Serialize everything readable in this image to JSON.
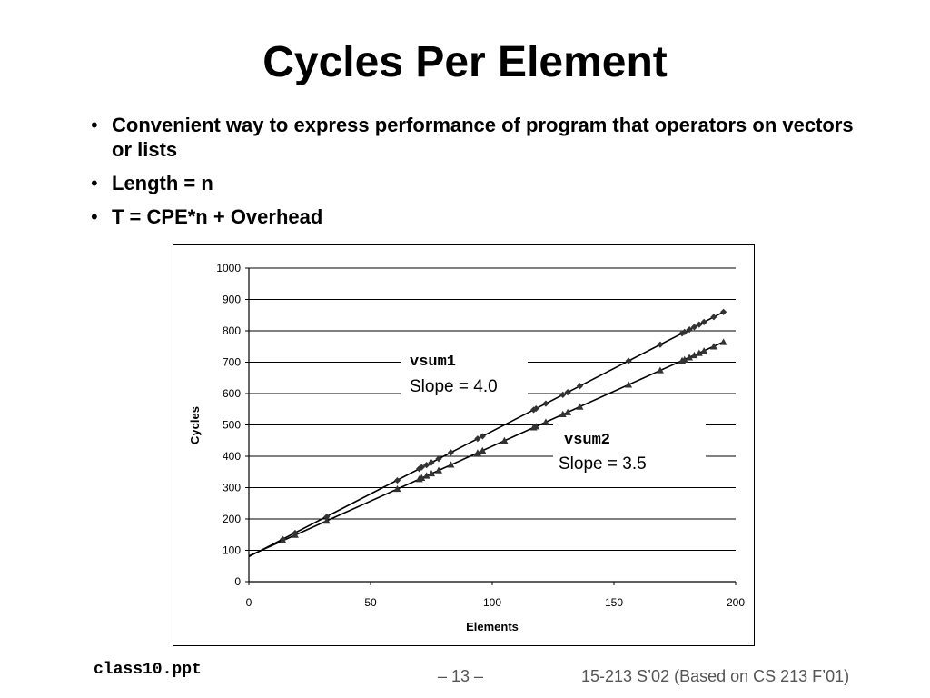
{
  "slide": {
    "title": "Cycles Per Element",
    "bullets": [
      "Convenient way to express performance of program that operators on vectors or lists",
      "Length = n",
      "T = CPE*n + Overhead"
    ],
    "footer_left": "class10.ppt",
    "footer_page": "– 13 –",
    "footer_right": "15-213 S’02 (Based on CS 213 F’01)"
  },
  "chart_data": {
    "type": "scatter",
    "xlabel": "Elements",
    "ylabel": "Cycles",
    "xlim": [
      0,
      200
    ],
    "ylim": [
      0,
      1000
    ],
    "xticks": [
      "0",
      "50",
      "100",
      "150",
      "200"
    ],
    "yticks": [
      "0",
      "100",
      "200",
      "300",
      "400",
      "500",
      "600",
      "700",
      "800",
      "900",
      "1000"
    ],
    "grid": "horizontal",
    "series": [
      {
        "name": "vsum1",
        "marker": "diamond",
        "fit_slope": 4.0,
        "fit_intercept": 80,
        "x": [
          14,
          19,
          32,
          61,
          70,
          71,
          73,
          75,
          78,
          83,
          94,
          96,
          117,
          118,
          122,
          129,
          131,
          136,
          156,
          169,
          178,
          179,
          181,
          183,
          185,
          187,
          191,
          195
        ],
        "y": [
          135,
          155,
          207,
          323,
          360,
          365,
          372,
          380,
          392,
          412,
          456,
          464,
          548,
          552,
          568,
          596,
          604,
          624,
          704,
          756,
          792,
          796,
          804,
          812,
          820,
          828,
          844,
          860
        ]
      },
      {
        "name": "vsum2",
        "marker": "triangle",
        "fit_slope": 3.5,
        "fit_intercept": 82,
        "x": [
          14,
          19,
          32,
          61,
          70,
          71,
          73,
          75,
          78,
          83,
          94,
          96,
          105,
          117,
          118,
          122,
          129,
          131,
          136,
          156,
          169,
          178,
          179,
          181,
          183,
          185,
          187,
          191,
          195
        ],
        "y": [
          131,
          149,
          194,
          296,
          327,
          331,
          338,
          345,
          355,
          373,
          411,
          418,
          450,
          492,
          495,
          509,
          534,
          540,
          558,
          628,
          674,
          705,
          708,
          715,
          722,
          729,
          736,
          750,
          764
        ]
      }
    ],
    "annotations": [
      {
        "code": "vsum1",
        "text": "Slope = 4.0"
      },
      {
        "code": "vsum2",
        "text": "Slope = 3.5"
      }
    ]
  }
}
